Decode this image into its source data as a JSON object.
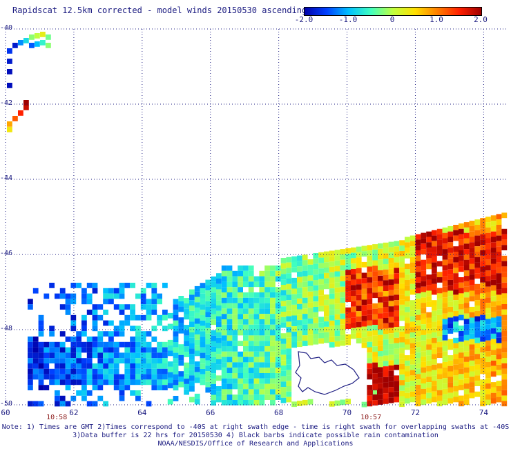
{
  "title": "Rapidscat 12.5km corrected - model winds 20150530 ascending",
  "colorbar": {
    "ticks": [
      "-2.0",
      "-1.0",
      "0",
      "1.0",
      "2.0"
    ],
    "range": [
      -2.0,
      2.0
    ],
    "colors": [
      "#0000aa",
      "#0040ff",
      "#00c0ff",
      "#40ffc0",
      "#c0ff40",
      "#ffe000",
      "#ff8000",
      "#ff2000",
      "#a00000"
    ]
  },
  "map": {
    "lat_labels": [
      "-40",
      "-42",
      "-44",
      "-46",
      "-48",
      "-50"
    ],
    "lon_labels": [
      "60",
      "62",
      "64",
      "66",
      "68",
      "70",
      "72",
      "74"
    ],
    "lat_range": [
      -50,
      -40
    ],
    "lon_range": [
      60,
      74.7
    ],
    "time_labels": [
      {
        "lon": 61.5,
        "text": "10:58"
      },
      {
        "lon": 70.7,
        "text": "10:57"
      }
    ],
    "grid": true,
    "land_label": "Kerguelen Islands outline"
  },
  "notes": {
    "line1": "Note: 1) Times are GMT 2)Times correspond to -40S at right swath edge - time is right swath for overlapping swaths at -40S",
    "line2": "3)Data buffer is 22 hrs for 20150530 4) Black barbs indicate possible rain contamination",
    "line3": "NOAA/NESDIS/Office of Research and Applications"
  }
}
